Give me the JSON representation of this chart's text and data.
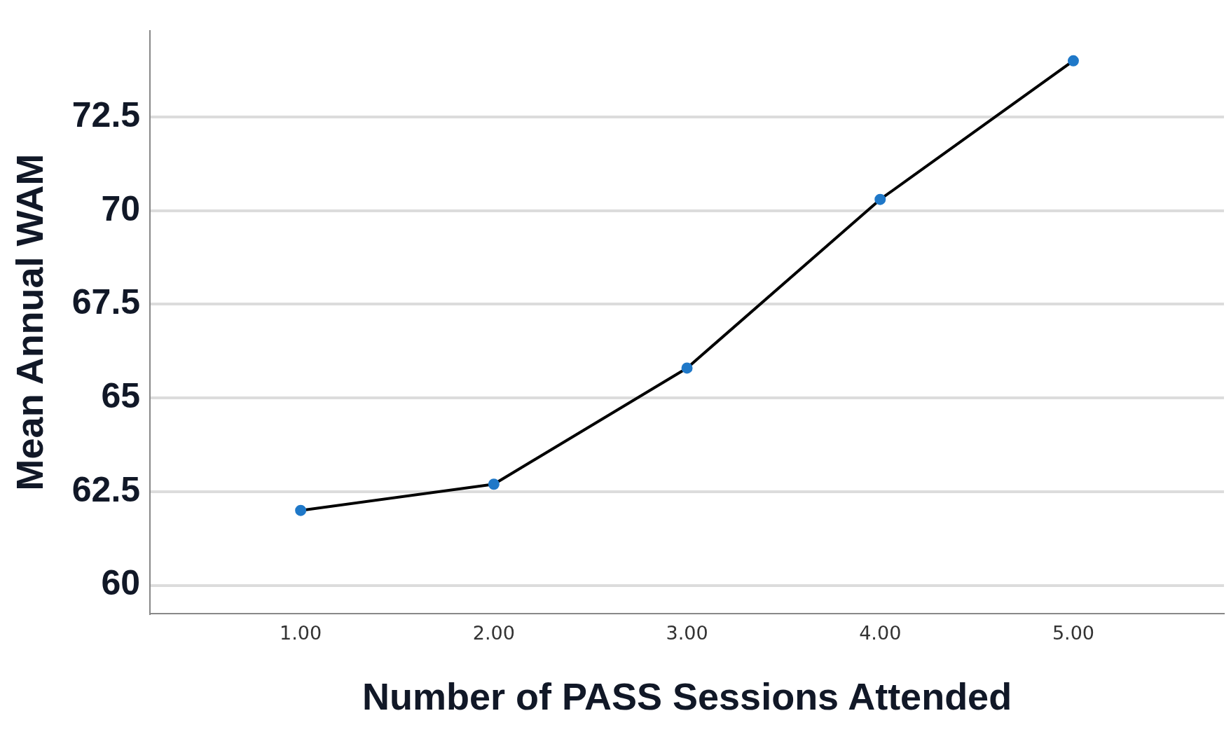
{
  "chart_data": {
    "type": "line",
    "xlabel": "Number of PASS Sessions Attended",
    "ylabel": "Mean Annual WAM",
    "x": [
      1,
      2,
      3,
      4,
      5
    ],
    "series": [
      {
        "color": "#000000",
        "colors": [
          "#1f78c8",
          "#1f78c8",
          "#1f78c8",
          "#1f78c8",
          "#1f78c8"
        ],
        "values": [
          62.0,
          62.7,
          65.8,
          70.3,
          74.0
        ]
      }
    ],
    "xlim": [
      0.22,
      5.78
    ],
    "xticks": [
      {
        "value": 1,
        "label": "1.00"
      },
      {
        "value": 2,
        "label": "2.00"
      },
      {
        "value": 3,
        "label": "3.00"
      },
      {
        "value": 4,
        "label": "4.00"
      },
      {
        "value": 5,
        "label": "5.00"
      }
    ],
    "ylim": [
      59.25,
      74.8
    ],
    "yticks": [
      60,
      62.5,
      65,
      67.5,
      70,
      72.5
    ],
    "grid": "y",
    "legend": false,
    "marker": "circle",
    "line_style": "solid"
  }
}
